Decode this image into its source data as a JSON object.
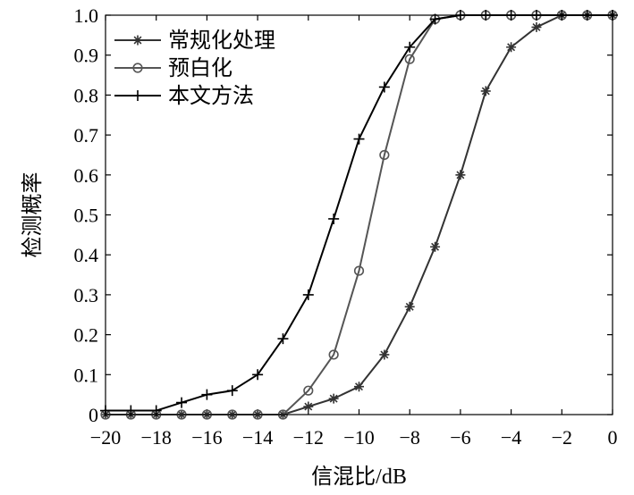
{
  "chart_data": {
    "type": "line",
    "title": "",
    "xlabel": "信混比/dB",
    "ylabel": "检测概率",
    "xlim": [
      -20,
      0
    ],
    "ylim": [
      0,
      1.0
    ],
    "xticks": [
      -20,
      -18,
      -16,
      -14,
      -12,
      -10,
      -8,
      -6,
      -4,
      -2,
      0
    ],
    "xtick_labels": [
      "−20",
      "−18",
      "−16",
      "−14",
      "−12",
      "−10",
      "−8",
      "−6",
      "−4",
      "−2",
      "0"
    ],
    "yticks": [
      0,
      0.1,
      0.2,
      0.3,
      0.4,
      0.5,
      0.6,
      0.7,
      0.8,
      0.9,
      1.0
    ],
    "ytick_labels": [
      "0",
      "0.1",
      "0.2",
      "0.3",
      "0.4",
      "0.5",
      "0.6",
      "0.7",
      "0.8",
      "0.9",
      "1.0"
    ],
    "grid": false,
    "legend_position": "top-left",
    "x": [
      -20,
      -19,
      -18,
      -17,
      -16,
      -15,
      -14,
      -13,
      -12,
      -11,
      -10,
      -9,
      -8,
      -7,
      -6,
      -5,
      -4,
      -3,
      -2,
      -1,
      0
    ],
    "series": [
      {
        "name": "常规化处理",
        "marker": "asterisk",
        "color": "#333333",
        "values": [
          0,
          0,
          0,
          0,
          0,
          0,
          0,
          0,
          0.02,
          0.04,
          0.07,
          0.15,
          0.27,
          0.42,
          0.6,
          0.81,
          0.92,
          0.97,
          1.0,
          1.0,
          1.0
        ]
      },
      {
        "name": "预白化",
        "marker": "circle",
        "color": "#555555",
        "values": [
          0,
          0,
          0,
          0,
          0,
          0,
          0,
          0,
          0.06,
          0.15,
          0.36,
          0.65,
          0.89,
          0.99,
          1.0,
          1.0,
          1.0,
          1.0,
          1.0,
          1.0,
          1.0
        ]
      },
      {
        "name": "本文方法",
        "marker": "plus",
        "color": "#000000",
        "values": [
          0.01,
          0.01,
          0.01,
          0.03,
          0.05,
          0.06,
          0.1,
          0.19,
          0.3,
          0.49,
          0.69,
          0.82,
          0.92,
          0.99,
          1.0,
          1.0,
          1.0,
          1.0,
          1.0,
          1.0,
          1.0
        ]
      }
    ]
  }
}
